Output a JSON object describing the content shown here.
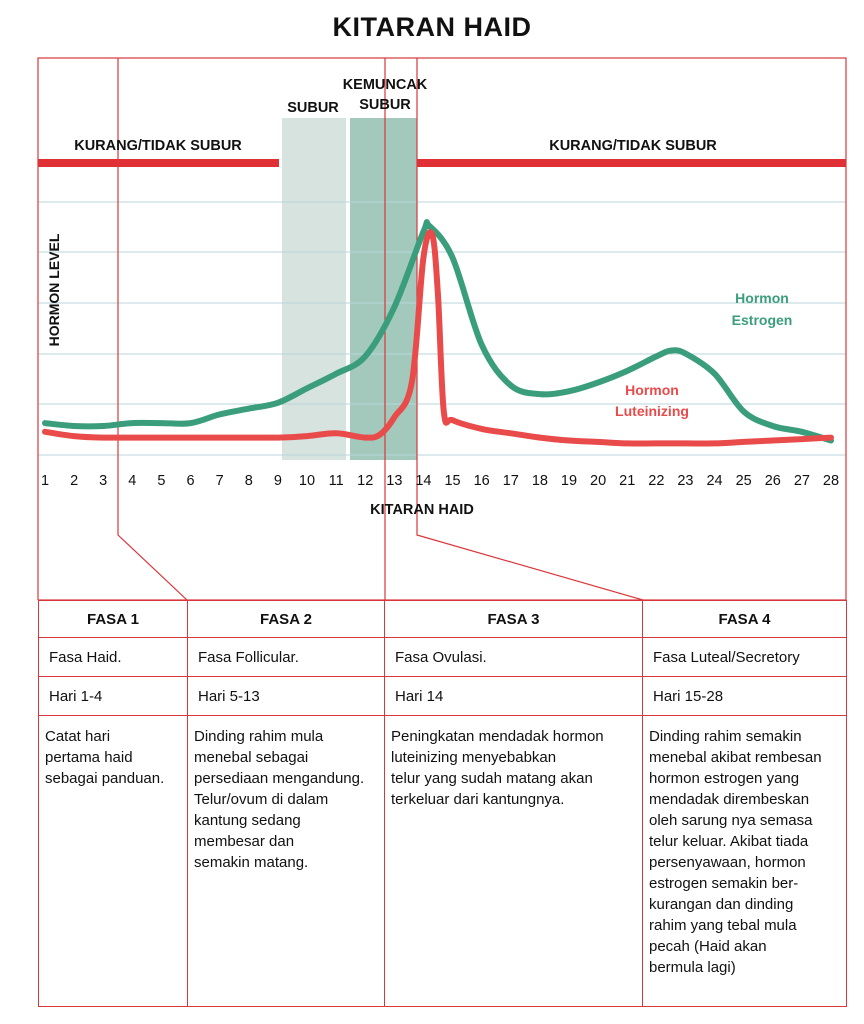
{
  "title": "KITARAN HAID",
  "chart_data": {
    "type": "line",
    "xlabel": "KITARAN HAID",
    "ylabel": "HORMON LEVEL",
    "x": [
      1,
      2,
      3,
      4,
      5,
      6,
      7,
      8,
      9,
      10,
      11,
      12,
      13,
      14,
      15,
      16,
      17,
      18,
      19,
      20,
      21,
      22,
      23,
      24,
      25,
      26,
      27,
      28
    ],
    "xlim": [
      1,
      28
    ],
    "ylim": [
      0,
      10
    ],
    "series": [
      {
        "name": "Hormon Estrogen",
        "color": "#3a9e7c",
        "x": [
          1,
          2,
          3,
          4,
          5,
          6,
          7,
          8,
          9,
          10,
          11,
          12,
          13,
          14,
          14.2,
          15,
          16,
          17,
          18,
          19,
          20,
          21,
          22,
          22.5,
          23,
          24,
          25,
          26,
          27,
          28
        ],
        "y": [
          1.1,
          1.0,
          1.0,
          1.1,
          1.1,
          1.1,
          1.4,
          1.6,
          1.8,
          2.3,
          2.8,
          3.4,
          5.1,
          7.7,
          7.9,
          6.8,
          3.8,
          2.4,
          2.1,
          2.2,
          2.5,
          2.9,
          3.4,
          3.6,
          3.5,
          2.8,
          1.5,
          1.0,
          0.8,
          0.5
        ]
      },
      {
        "name": "Hormon Luteinizing",
        "color": "#e94b4b",
        "x": [
          1,
          2,
          3,
          4,
          5,
          6,
          7,
          8,
          9,
          10,
          11,
          12,
          12.5,
          13,
          13.6,
          14,
          14.3,
          14.5,
          14.7,
          15,
          16,
          17,
          18,
          19,
          20,
          21,
          22,
          23,
          24,
          25,
          26,
          27,
          28
        ],
        "y": [
          0.8,
          0.65,
          0.6,
          0.6,
          0.6,
          0.6,
          0.6,
          0.6,
          0.6,
          0.65,
          0.75,
          0.6,
          0.7,
          1.3,
          2.5,
          6.8,
          7.6,
          5.5,
          1.5,
          1.2,
          0.9,
          0.75,
          0.6,
          0.5,
          0.45,
          0.4,
          0.4,
          0.4,
          0.4,
          0.45,
          0.5,
          0.55,
          0.6
        ]
      }
    ],
    "zones": [
      {
        "label": "KURANG/TIDAK SUBUR",
        "from": 1,
        "to": 11
      },
      {
        "label": "SUBUR",
        "from": 11,
        "to": 12.7,
        "color": "#d6e3df"
      },
      {
        "label": "KEMUNCAK SUBUR",
        "from": 12.7,
        "to": 14.7,
        "color": "#a3c9bd"
      },
      {
        "label": "KURANG/TIDAK SUBUR",
        "from": 14.7,
        "to": 28
      }
    ],
    "grid": true
  },
  "labels": {
    "zone_left": "KURANG/TIDAK SUBUR",
    "zone_right": "KURANG/TIDAK SUBUR",
    "subur": "SUBUR",
    "kemuncak_line1": "KEMUNCAK",
    "kemuncak_line2": "SUBUR",
    "estrogen_line1": "Hormon",
    "estrogen_line2": "Estrogen",
    "lh_line1": "Hormon",
    "lh_line2": "Luteinizing"
  },
  "phases": [
    {
      "title": "FASA 1",
      "name": "Fasa Haid.",
      "days": "Hari 1-4",
      "desc": [
        "Catat hari",
        "pertama haid",
        "sebagai panduan."
      ]
    },
    {
      "title": "FASA 2",
      "name": "Fasa Follicular.",
      "days": "Hari 5-13",
      "desc": [
        "Dinding rahim mula",
        "menebal sebagai",
        "persediaan mengandung.",
        "Telur/ovum di dalam",
        "kantung sedang",
        "membesar dan",
        "semakin matang."
      ]
    },
    {
      "title": "FASA 3",
      "name": "Fasa Ovulasi.",
      "days": "Hari 14",
      "desc": [
        "Peningkatan mendadak hormon",
        "luteinizing menyebabkan",
        "telur yang sudah matang akan",
        "terkeluar dari kantungnya."
      ]
    },
    {
      "title": "FASA 4",
      "name": "Fasa Luteal/Secretory",
      "days": "Hari 15-28",
      "desc": [
        "Dinding rahim semakin",
        "menebal akibat rembesan",
        "hormon estrogen yang",
        "mendadak dirembeskan",
        "oleh sarung nya semasa",
        "telur keluar. Akibat tiada",
        "persenyawaan, hormon",
        "estrogen semakin ber-",
        "kurangan dan dinding",
        "rahim yang tebal mula",
        "pecah (Haid akan",
        "bermula lagi)"
      ]
    }
  ],
  "colors": {
    "red": "#d9373b",
    "barRed": "#e03035",
    "estrogen": "#3a9e7c",
    "lh": "#e94b4b",
    "grid": "#b9d6dc"
  }
}
